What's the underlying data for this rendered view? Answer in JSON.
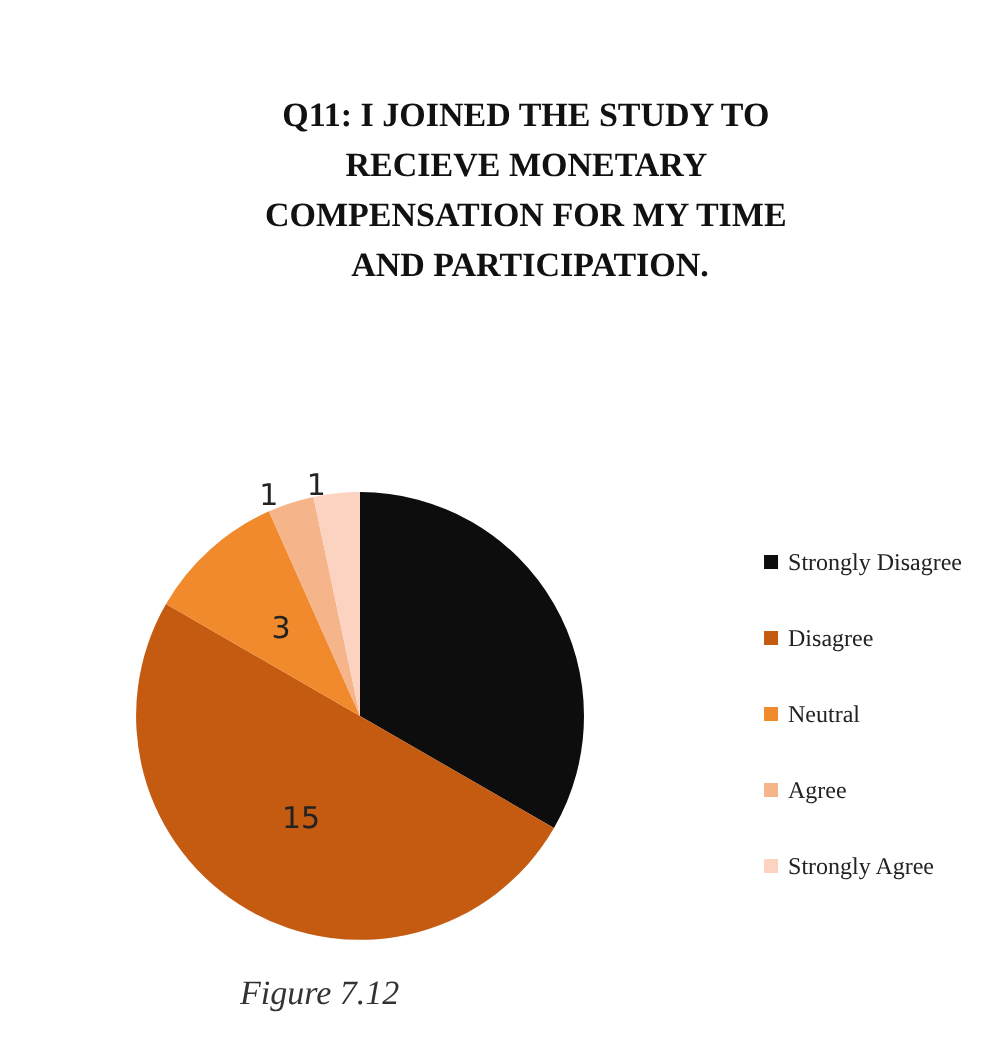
{
  "chart_data": {
    "type": "pie",
    "title": "Q11: I JOINED THE STUDY TO RECIEVE MONETARY COMPENSATION FOR MY TIME AND PARTICIPATION.",
    "categories": [
      "Strongly Disagree",
      "Disagree",
      "Neutral",
      "Agree",
      "Strongly Agree"
    ],
    "values": [
      10,
      15,
      3,
      1,
      1
    ],
    "value_labels": [
      null,
      "15",
      "3",
      "1",
      "1"
    ],
    "colors": [
      "#0d0d0d",
      "#c55a11",
      "#f08a2c",
      "#f6b48a",
      "#fbd3c0"
    ],
    "legend": "right",
    "annotations": [
      "Figure 7.12"
    ]
  }
}
